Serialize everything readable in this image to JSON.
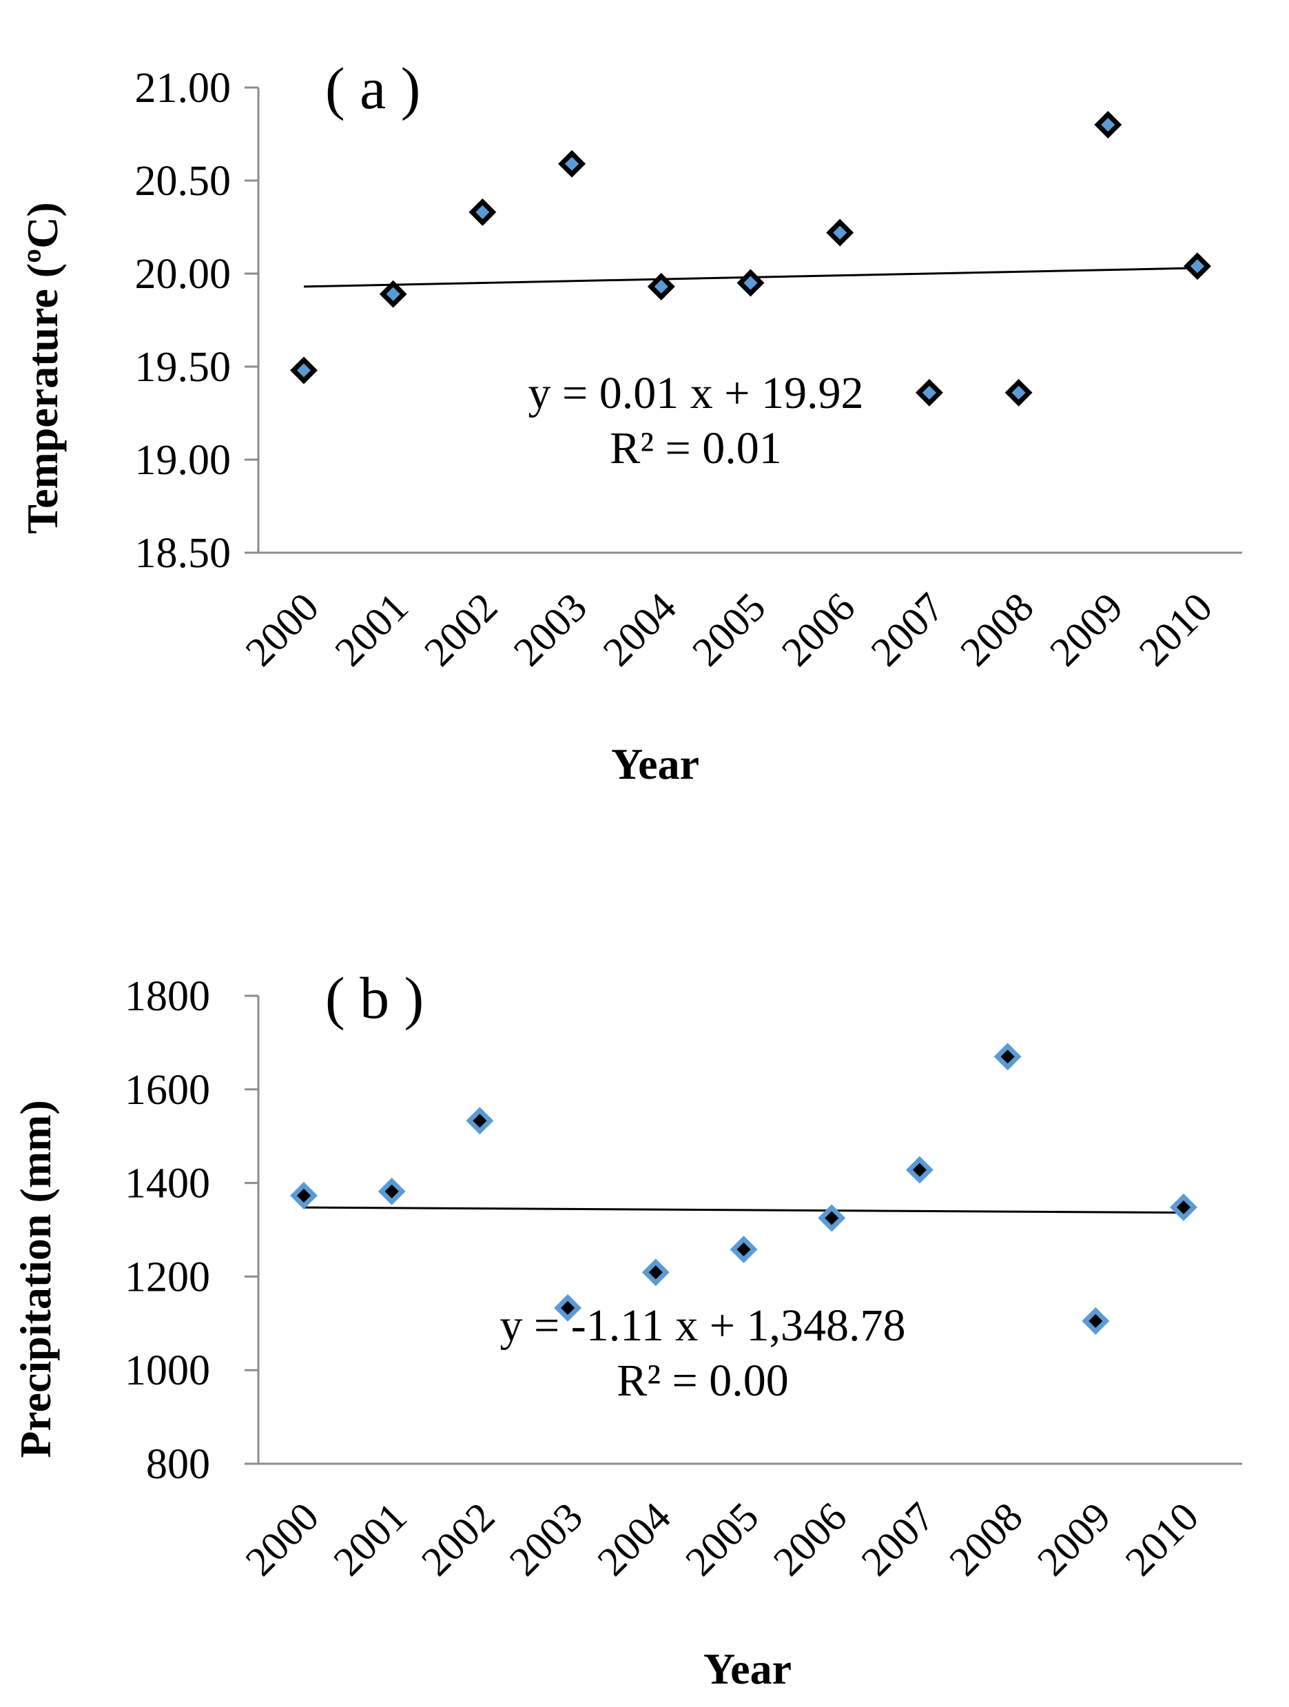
{
  "chart_data": [
    {
      "type": "scatter",
      "panel_label": "( a )",
      "title": "",
      "xlabel": "Year",
      "ylabel": "Temperature (ºC)",
      "categories": [
        "2000",
        "2001",
        "2002",
        "2003",
        "2004",
        "2005",
        "2006",
        "2007",
        "2008",
        "2009",
        "2010"
      ],
      "series": [
        {
          "name": "Temperature",
          "values": [
            19.48,
            19.89,
            20.33,
            20.59,
            19.93,
            19.95,
            20.22,
            19.36,
            19.36,
            20.8,
            20.04
          ]
        }
      ],
      "yticks": [
        "18.50",
        "19.00",
        "19.50",
        "20.00",
        "20.50",
        "21.00"
      ],
      "ylim": [
        18.5,
        21.0
      ],
      "trendline": {
        "slope": 0.01,
        "intercept": 19.92
      },
      "equation": "y = 0.01 x + 19.92",
      "r_squared": "R² = 0.01",
      "grid": false,
      "colors": {
        "marker_fill": "#5b9bd5",
        "marker_stroke": "#000000",
        "axis": "#8c8c8c",
        "trendline": "#000000"
      }
    },
    {
      "type": "scatter",
      "panel_label": "( b )",
      "title": "",
      "xlabel": "Year",
      "ylabel": "Precipitation (mm)",
      "categories": [
        "2000",
        "2001",
        "2002",
        "2003",
        "2004",
        "2005",
        "2006",
        "2007",
        "2008",
        "2009",
        "2010"
      ],
      "series": [
        {
          "name": "Precipitation",
          "values": [
            1373,
            1382,
            1533,
            1133,
            1209,
            1258,
            1325,
            1428,
            1670,
            1105,
            1348
          ]
        }
      ],
      "yticks": [
        "800",
        "1000",
        "1200",
        "1400",
        "1600",
        "1800"
      ],
      "ylim": [
        800,
        1800
      ],
      "trendline": {
        "slope": -1.11,
        "intercept": 1348.78
      },
      "equation": "y = -1.11 x + 1,348.78",
      "r_squared": "R² = 0.00",
      "grid": false,
      "colors": {
        "marker_fill": "#000000",
        "marker_stroke": "#5b9bd5",
        "axis": "#8c8c8c",
        "trendline": "#000000"
      }
    }
  ]
}
